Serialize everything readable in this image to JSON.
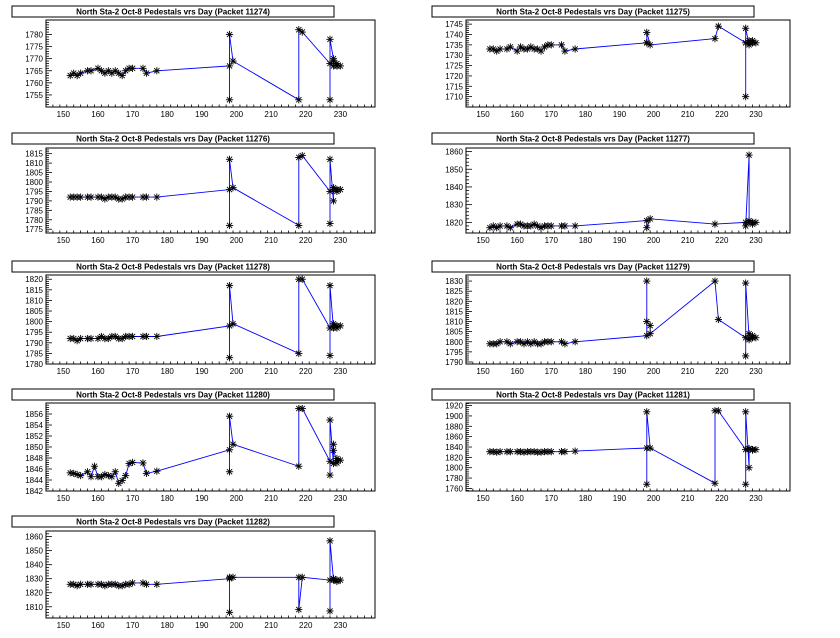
{
  "colors": {
    "line": "#0000ff",
    "marker": "#000000",
    "frame": "#000000",
    "background": "#ffffff"
  },
  "chart_data": [
    {
      "type": "line",
      "title": "North Sta-2 Oct-8 Pedestals vrs Day (Packet 11274)",
      "xlim": [
        145,
        240
      ],
      "xticks": [
        150,
        160,
        170,
        180,
        190,
        200,
        210,
        220,
        230
      ],
      "ylim": [
        1750,
        1786
      ],
      "yticks": [
        1755,
        1760,
        1765,
        1770,
        1775,
        1780
      ],
      "x": [
        152,
        153,
        154,
        155,
        157,
        158,
        160,
        161,
        162,
        163,
        164,
        165,
        166,
        167,
        168,
        169,
        170,
        173,
        174,
        177,
        198,
        198,
        198,
        199,
        218,
        218,
        219,
        227,
        227,
        227,
        228,
        228,
        228,
        229,
        229,
        229,
        230
      ],
      "y": [
        1763,
        1764,
        1763,
        1764,
        1765,
        1765,
        1766,
        1765,
        1764,
        1765,
        1764,
        1765,
        1764,
        1763,
        1765,
        1766,
        1766,
        1766,
        1764,
        1765,
        1767,
        1753,
        1780,
        1769,
        1753,
        1782,
        1781,
        1768,
        1753,
        1778,
        1770,
        1767,
        1769,
        1768,
        1767,
        1767,
        1767
      ]
    },
    {
      "type": "line",
      "title": "North Sta-2 Oct-8 Pedestals vrs Day (Packet 11275)",
      "xlim": [
        145,
        240
      ],
      "xticks": [
        150,
        160,
        170,
        180,
        190,
        200,
        210,
        220,
        230
      ],
      "ylim": [
        1705,
        1747
      ],
      "yticks": [
        1710,
        1715,
        1720,
        1725,
        1730,
        1735,
        1740,
        1745
      ],
      "x": [
        152,
        153,
        154,
        155,
        157,
        158,
        160,
        161,
        162,
        163,
        164,
        165,
        166,
        167,
        168,
        169,
        170,
        173,
        174,
        177,
        198,
        198,
        198,
        199,
        218,
        219,
        227,
        227,
        227,
        228,
        228,
        228,
        229,
        229,
        229,
        230
      ],
      "y": [
        1733,
        1733,
        1732,
        1733,
        1733,
        1734,
        1732,
        1734,
        1733,
        1733,
        1734,
        1733,
        1733,
        1732,
        1734,
        1735,
        1735,
        1735,
        1732,
        1733,
        1736,
        1736,
        1741,
        1735,
        1738,
        1744,
        1736,
        1710,
        1743,
        1735,
        1736,
        1737,
        1736,
        1737,
        1736,
        1736
      ]
    },
    {
      "type": "line",
      "title": "North Sta-2 Oct-8 Pedestals vrs Day (Packet 11276)",
      "xlim": [
        145,
        240
      ],
      "xticks": [
        150,
        160,
        170,
        180,
        190,
        200,
        210,
        220,
        230
      ],
      "ylim": [
        1773,
        1818
      ],
      "yticks": [
        1775,
        1780,
        1785,
        1790,
        1795,
        1800,
        1805,
        1810,
        1815
      ],
      "x": [
        152,
        153,
        154,
        155,
        157,
        158,
        160,
        161,
        162,
        163,
        164,
        165,
        166,
        167,
        168,
        169,
        170,
        173,
        174,
        177,
        198,
        198,
        198,
        199,
        218,
        218,
        219,
        227,
        227,
        227,
        228,
        228,
        228,
        229,
        229,
        229,
        230
      ],
      "y": [
        1792,
        1792,
        1792,
        1792,
        1792,
        1792,
        1792,
        1792,
        1791,
        1792,
        1792,
        1792,
        1791,
        1791,
        1792,
        1792,
        1792,
        1792,
        1792,
        1792,
        1796,
        1777,
        1812,
        1797,
        1777,
        1813,
        1814,
        1795,
        1778,
        1812,
        1790,
        1796,
        1797,
        1796,
        1795,
        1796,
        1796
      ]
    },
    {
      "type": "line",
      "title": "North Sta-2 Oct-8 Pedestals vrs Day (Packet 11277)",
      "xlim": [
        145,
        240
      ],
      "xticks": [
        150,
        160,
        170,
        180,
        190,
        200,
        210,
        220,
        230
      ],
      "ylim": [
        1814,
        1862
      ],
      "yticks": [
        1820,
        1830,
        1840,
        1850,
        1860
      ],
      "x": [
        152,
        153,
        154,
        155,
        157,
        158,
        160,
        161,
        162,
        163,
        164,
        165,
        166,
        167,
        168,
        169,
        170,
        173,
        174,
        177,
        198,
        198,
        199,
        218,
        227,
        227,
        228,
        228,
        228,
        229,
        229,
        230
      ],
      "y": [
        1817,
        1818,
        1817,
        1818,
        1818,
        1817,
        1819,
        1819,
        1818,
        1818,
        1818,
        1819,
        1818,
        1817,
        1818,
        1818,
        1818,
        1818,
        1818,
        1818,
        1821,
        1817,
        1822,
        1819,
        1820,
        1818,
        1858,
        1820,
        1821,
        1820,
        1819,
        1820
      ]
    },
    {
      "type": "line",
      "title": "North Sta-2 Oct-8 Pedestals vrs Day (Packet 11278)",
      "xlim": [
        145,
        240
      ],
      "xticks": [
        150,
        160,
        170,
        180,
        190,
        200,
        210,
        220,
        230
      ],
      "ylim": [
        1780,
        1822
      ],
      "yticks": [
        1780,
        1785,
        1790,
        1795,
        1800,
        1805,
        1810,
        1815,
        1820
      ],
      "x": [
        152,
        153,
        154,
        155,
        157,
        158,
        160,
        161,
        162,
        163,
        164,
        165,
        166,
        167,
        168,
        169,
        170,
        173,
        174,
        177,
        198,
        198,
        198,
        199,
        218,
        218,
        219,
        227,
        227,
        227,
        228,
        228,
        228,
        229,
        229,
        229,
        230
      ],
      "y": [
        1792,
        1792,
        1791,
        1792,
        1792,
        1792,
        1792,
        1793,
        1792,
        1792,
        1793,
        1793,
        1792,
        1792,
        1793,
        1793,
        1793,
        1793,
        1793,
        1793,
        1798,
        1783,
        1817,
        1799,
        1785,
        1820,
        1820,
        1797,
        1784,
        1817,
        1797,
        1799,
        1798,
        1797,
        1798,
        1798,
        1798
      ]
    },
    {
      "type": "line",
      "title": "North Sta-2 Oct-8 Pedestals vrs Day (Packet 11279)",
      "xlim": [
        145,
        240
      ],
      "xticks": [
        150,
        160,
        170,
        180,
        190,
        200,
        210,
        220,
        230
      ],
      "ylim": [
        1789,
        1833
      ],
      "yticks": [
        1790,
        1795,
        1800,
        1805,
        1810,
        1815,
        1820,
        1825,
        1830
      ],
      "x": [
        152,
        153,
        154,
        155,
        157,
        158,
        160,
        161,
        162,
        163,
        164,
        165,
        166,
        167,
        168,
        169,
        170,
        173,
        174,
        177,
        198,
        198,
        198,
        199,
        199,
        218,
        219,
        227,
        227,
        227,
        228,
        228,
        228,
        229,
        229,
        229,
        230
      ],
      "y": [
        1799,
        1799,
        1799,
        1800,
        1800,
        1799,
        1800,
        1800,
        1799,
        1800,
        1799,
        1800,
        1799,
        1799,
        1800,
        1800,
        1800,
        1800,
        1799,
        1800,
        1803,
        1830,
        1810,
        1808,
        1804,
        1830,
        1811,
        1802,
        1793,
        1829,
        1802,
        1804,
        1801,
        1803,
        1802,
        1802,
        1802
      ]
    },
    {
      "type": "line",
      "title": "North Sta-2 Oct-8 Pedestals vrs Day (Packet 11280)",
      "xlim": [
        145,
        240
      ],
      "xticks": [
        150,
        160,
        170,
        180,
        190,
        200,
        210,
        220,
        230
      ],
      "ylim": [
        1842,
        1858
      ],
      "yticks": [
        1842,
        1844,
        1846,
        1848,
        1850,
        1852,
        1854,
        1856
      ],
      "x": [
        152,
        153,
        154,
        155,
        157,
        158,
        159,
        160,
        161,
        162,
        163,
        164,
        165,
        166,
        167,
        168,
        169,
        170,
        173,
        174,
        177,
        198,
        198,
        198,
        199,
        218,
        218,
        219,
        227,
        227,
        227,
        228,
        228,
        228,
        229,
        229,
        229,
        230
      ],
      "y": [
        1845.3,
        1845.2,
        1845,
        1844.8,
        1845.5,
        1844.6,
        1846.5,
        1844.6,
        1844.6,
        1845,
        1844.8,
        1844.6,
        1845.5,
        1843.4,
        1843.9,
        1844.8,
        1847,
        1847.2,
        1847.1,
        1845.2,
        1845.6,
        1849.5,
        1845.5,
        1855.6,
        1850.5,
        1846.5,
        1857,
        1857,
        1847.4,
        1844.9,
        1854.9,
        1847,
        1850.5,
        1849.4,
        1847.5,
        1847.1,
        1847.9,
        1847.6
      ]
    },
    {
      "type": "line",
      "title": "North Sta-2 Oct-8 Pedestals vrs Day (Packet 11281)",
      "xlim": [
        145,
        240
      ],
      "xticks": [
        150,
        160,
        170,
        180,
        190,
        200,
        210,
        220,
        230
      ],
      "ylim": [
        1755,
        1925
      ],
      "yticks": [
        1760,
        1780,
        1800,
        1820,
        1840,
        1860,
        1880,
        1900,
        1920
      ],
      "x": [
        152,
        153,
        154,
        155,
        157,
        158,
        160,
        161,
        162,
        163,
        164,
        165,
        166,
        167,
        168,
        169,
        170,
        173,
        174,
        177,
        198,
        198,
        198,
        199,
        218,
        218,
        219,
        227,
        227,
        227,
        228,
        228,
        228,
        229,
        229,
        229,
        230
      ],
      "y": [
        1831,
        1831,
        1830,
        1831,
        1831,
        1831,
        1831,
        1831,
        1830,
        1831,
        1831,
        1831,
        1830,
        1830,
        1831,
        1831,
        1831,
        1831,
        1831,
        1832,
        1838,
        1768,
        1908,
        1838,
        1770,
        1910,
        1910,
        1835,
        1768,
        1908,
        1800,
        1836,
        1837,
        1835,
        1834,
        1835,
        1835
      ]
    },
    {
      "type": "line",
      "title": "North Sta-2 Oct-8 Pedestals vrs Day (Packet 11282)",
      "xlim": [
        145,
        240
      ],
      "xticks": [
        150,
        160,
        170,
        180,
        190,
        200,
        210,
        220,
        230
      ],
      "ylim": [
        1802,
        1864
      ],
      "yticks": [
        1810,
        1820,
        1830,
        1840,
        1850,
        1860
      ],
      "x": [
        152,
        153,
        154,
        155,
        157,
        158,
        160,
        161,
        162,
        163,
        164,
        165,
        166,
        167,
        168,
        169,
        170,
        173,
        174,
        177,
        198,
        198,
        198,
        199,
        218,
        218,
        219,
        227,
        227,
        227,
        228,
        228,
        228,
        229,
        229,
        229,
        230
      ],
      "y": [
        1826,
        1826,
        1825,
        1826,
        1826,
        1826,
        1826,
        1826,
        1825,
        1826,
        1826,
        1826,
        1825,
        1825,
        1826,
        1826,
        1827,
        1827,
        1826,
        1826,
        1830,
        1806,
        1831,
        1831,
        1831,
        1808,
        1831,
        1829,
        1807,
        1857,
        1830,
        1829,
        1830,
        1829,
        1828,
        1829,
        1829
      ]
    }
  ]
}
